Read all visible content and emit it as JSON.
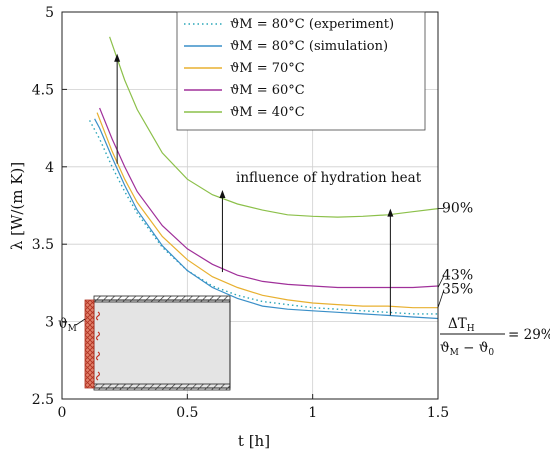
{
  "chart_data": {
    "type": "line",
    "xlabel": "t [h]",
    "ylabel": "λ [W/(m K)]",
    "xlim": [
      0,
      1.5
    ],
    "ylim": [
      2.5,
      5
    ],
    "xticks": [
      "0",
      "0.5",
      "1",
      "1.5"
    ],
    "yticks": [
      "2.5",
      "3",
      "3.5",
      "4",
      "4.5",
      "5"
    ],
    "grid": true,
    "legend_position": "top-right",
    "series": [
      {
        "name": "ϑM = 80°C (experiment)",
        "style": "dotted",
        "color": "#2aa6b8",
        "x": [
          0.11,
          0.15,
          0.2,
          0.25,
          0.3,
          0.4,
          0.5,
          0.6,
          0.7,
          0.8,
          0.9,
          1.0,
          1.1,
          1.2,
          1.3,
          1.4,
          1.5
        ],
        "y": [
          4.3,
          4.18,
          4.0,
          3.84,
          3.7,
          3.48,
          3.33,
          3.23,
          3.17,
          3.13,
          3.11,
          3.09,
          3.08,
          3.07,
          3.06,
          3.05,
          3.05
        ]
      },
      {
        "name": "ϑM = 80°C (simulation)",
        "style": "solid",
        "color": "#3a8fc8",
        "x": [
          0.13,
          0.15,
          0.2,
          0.25,
          0.3,
          0.4,
          0.5,
          0.6,
          0.7,
          0.8,
          0.9,
          1.0,
          1.1,
          1.2,
          1.3,
          1.4,
          1.5
        ],
        "y": [
          4.31,
          4.25,
          4.06,
          3.88,
          3.72,
          3.49,
          3.33,
          3.22,
          3.15,
          3.1,
          3.08,
          3.07,
          3.06,
          3.05,
          3.04,
          3.03,
          3.02
        ]
      },
      {
        "name": "ϑM = 70°C",
        "style": "solid",
        "color": "#e8b030",
        "x": [
          0.14,
          0.2,
          0.25,
          0.3,
          0.4,
          0.5,
          0.6,
          0.7,
          0.8,
          0.9,
          1.0,
          1.1,
          1.2,
          1.3,
          1.4,
          1.5
        ],
        "y": [
          4.35,
          4.1,
          3.92,
          3.77,
          3.55,
          3.4,
          3.29,
          3.22,
          3.17,
          3.14,
          3.12,
          3.11,
          3.1,
          3.1,
          3.09,
          3.09
        ]
      },
      {
        "name": "ϑM = 60°C",
        "style": "solid",
        "color": "#a0309a",
        "x": [
          0.15,
          0.2,
          0.25,
          0.3,
          0.4,
          0.5,
          0.6,
          0.7,
          0.8,
          0.9,
          1.0,
          1.1,
          1.2,
          1.3,
          1.4,
          1.5
        ],
        "y": [
          4.38,
          4.18,
          4.0,
          3.84,
          3.62,
          3.47,
          3.37,
          3.3,
          3.26,
          3.24,
          3.23,
          3.22,
          3.22,
          3.22,
          3.22,
          3.23
        ]
      },
      {
        "name": "ϑM = 40°C",
        "style": "solid",
        "color": "#8cc04a",
        "x": [
          0.19,
          0.25,
          0.3,
          0.4,
          0.5,
          0.6,
          0.7,
          0.8,
          0.9,
          1.0,
          1.1,
          1.2,
          1.3,
          1.4,
          1.5
        ],
        "y": [
          4.84,
          4.56,
          4.37,
          4.09,
          3.92,
          3.82,
          3.76,
          3.72,
          3.69,
          3.68,
          3.675,
          3.68,
          3.69,
          3.71,
          3.73
        ]
      }
    ],
    "annotations": {
      "note_text": "influence of hydration heat",
      "arrows": [
        {
          "x": 0.22,
          "y_from": 4.02,
          "y_to": 4.73
        },
        {
          "x": 0.64,
          "y_from": 3.32,
          "y_to": 3.85
        },
        {
          "x": 1.31,
          "y_from": 3.04,
          "y_to": 3.73
        }
      ],
      "percent_labels": [
        {
          "text": "90%",
          "y": 3.73
        },
        {
          "text": "43%",
          "y": 3.22
        },
        {
          "text": "35%",
          "y": 3.09
        }
      ],
      "ratio_numerator": "ΔT",
      "ratio_numerator_sub": "H",
      "ratio_denominator": "ϑ",
      "ratio_denominator_sub1": "M",
      "ratio_denominator_mid": " − ϑ",
      "ratio_denominator_sub2": "0",
      "ratio_result": "= 29%",
      "inset_label": "ϑ",
      "inset_label_sub": "M"
    }
  }
}
